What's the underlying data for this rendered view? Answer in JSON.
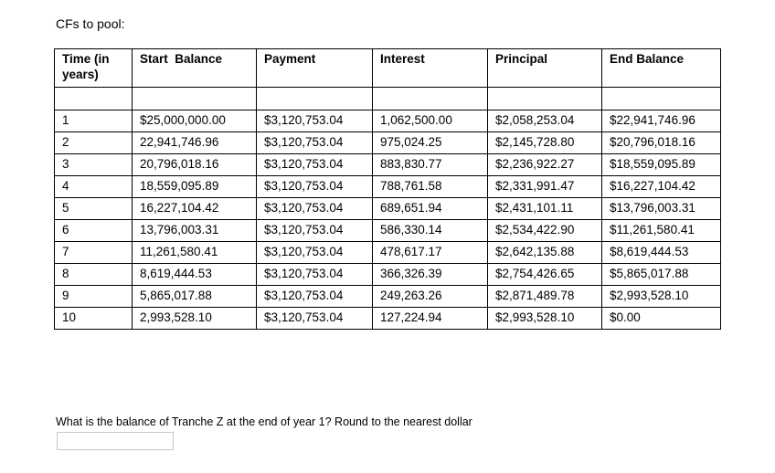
{
  "title": "CFs to pool:",
  "table": {
    "headers": [
      "Time (in years)",
      "Start  Balance",
      "Payment",
      "Interest",
      "Principal",
      "End Balance"
    ],
    "spacer_row": [
      "",
      "",
      "",
      "",
      "",
      ""
    ],
    "rows": [
      [
        "1",
        "$25,000,000.00",
        "$3,120,753.04",
        "1,062,500.00",
        "$2,058,253.04",
        "$22,941,746.96"
      ],
      [
        "2",
        "22,941,746.96",
        "$3,120,753.04",
        "975,024.25",
        "$2,145,728.80",
        "$20,796,018.16"
      ],
      [
        "3",
        "20,796,018.16",
        "$3,120,753.04",
        "883,830.77",
        "$2,236,922.27",
        "$18,559,095.89"
      ],
      [
        "4",
        "18,559,095.89",
        "$3,120,753.04",
        "788,761.58",
        "$2,331,991.47",
        "$16,227,104.42"
      ],
      [
        "5",
        "16,227,104.42",
        "$3,120,753.04",
        "689,651.94",
        "$2,431,101.11",
        "$13,796,003.31"
      ],
      [
        "6",
        "13,796,003.31",
        "$3,120,753.04",
        "586,330.14",
        "$2,534,422.90",
        "$11,261,580.41"
      ],
      [
        "7",
        "11,261,580.41",
        "$3,120,753.04",
        "478,617.17",
        "$2,642,135.88",
        "$8,619,444.53"
      ],
      [
        "8",
        "8,619,444.53",
        "$3,120,753.04",
        "366,326.39",
        "$2,754,426.65",
        "$5,865,017.88"
      ],
      [
        "9",
        "5,865,017.88",
        "$3,120,753.04",
        "249,263.26",
        "$2,871,489.78",
        "$2,993,528.10"
      ],
      [
        "10",
        "2,993,528.10",
        "$3,120,753.04",
        "127,224.94",
        "$2,993,528.10",
        "$0.00"
      ]
    ]
  },
  "question": {
    "text": "What is the balance of Tranche Z at the end of year 1? Round to the nearest dollar",
    "answer_value": ""
  }
}
